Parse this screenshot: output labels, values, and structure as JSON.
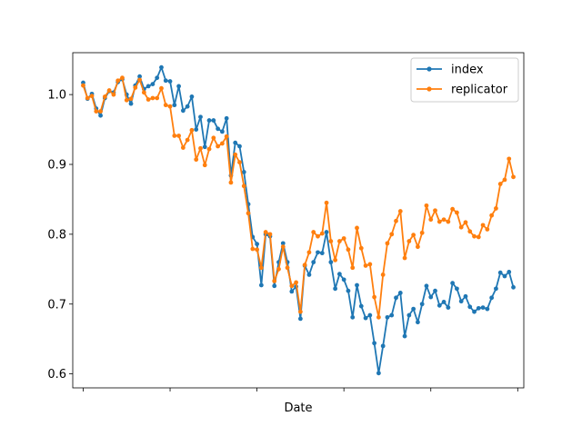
{
  "chart_data": {
    "type": "line",
    "title": "",
    "xlabel": "Date",
    "ylabel": "",
    "xlim": [
      -2.4,
      101.4
    ],
    "ylim": [
      0.58,
      1.06
    ],
    "yticks": [
      0.6,
      0.7,
      0.8,
      0.9,
      1.0
    ],
    "ytick_labels": [
      "0.6",
      "0.7",
      "0.8",
      "0.9",
      "1.0"
    ],
    "xticks": [
      0,
      20,
      40,
      60,
      80,
      100
    ],
    "xtick_labels": [
      "",
      "",
      "",
      "",
      "",
      ""
    ],
    "grid": false,
    "legend_loc": "upper right",
    "series": [
      {
        "name": "index",
        "color": "#1f77b4",
        "marker": "circle",
        "values": [
          1.017,
          0.994,
          1.001,
          0.98,
          0.97,
          0.995,
          1.005,
          1.003,
          1.018,
          1.022,
          1.0,
          0.987,
          1.013,
          1.026,
          1.008,
          1.012,
          1.015,
          1.024,
          1.039,
          1.02,
          1.019,
          0.985,
          1.012,
          0.977,
          0.983,
          0.997,
          0.95,
          0.968,
          0.925,
          0.963,
          0.963,
          0.951,
          0.947,
          0.966,
          0.884,
          0.931,
          0.926,
          0.889,
          0.843,
          0.796,
          0.786,
          0.727,
          0.8,
          0.797,
          0.726,
          0.76,
          0.787,
          0.76,
          0.718,
          0.725,
          0.679,
          0.755,
          0.742,
          0.76,
          0.774,
          0.773,
          0.803,
          0.76,
          0.722,
          0.743,
          0.735,
          0.719,
          0.681,
          0.727,
          0.697,
          0.68,
          0.684,
          0.644,
          0.601,
          0.64,
          0.681,
          0.684,
          0.709,
          0.716,
          0.654,
          0.684,
          0.693,
          0.674,
          0.7,
          0.726,
          0.71,
          0.719,
          0.698,
          0.703,
          0.695,
          0.73,
          0.722,
          0.704,
          0.711,
          0.696,
          0.689,
          0.694,
          0.695,
          0.693,
          0.709,
          0.722,
          0.745,
          0.74,
          0.746,
          0.724
        ]
      },
      {
        "name": "replicator",
        "color": "#ff7f0e",
        "marker": "circle",
        "values": [
          1.013,
          0.995,
          0.998,
          0.976,
          0.976,
          0.997,
          1.006,
          1.0,
          1.02,
          1.024,
          0.992,
          0.994,
          1.01,
          1.021,
          1.003,
          0.993,
          0.995,
          0.995,
          1.009,
          0.985,
          0.983,
          0.941,
          0.941,
          0.924,
          0.935,
          0.949,
          0.907,
          0.923,
          0.899,
          0.922,
          0.938,
          0.926,
          0.93,
          0.94,
          0.874,
          0.914,
          0.903,
          0.869,
          0.83,
          0.779,
          0.778,
          0.752,
          0.803,
          0.8,
          0.733,
          0.75,
          0.782,
          0.752,
          0.726,
          0.731,
          0.689,
          0.756,
          0.774,
          0.803,
          0.797,
          0.801,
          0.845,
          0.79,
          0.763,
          0.79,
          0.794,
          0.778,
          0.752,
          0.809,
          0.78,
          0.755,
          0.757,
          0.71,
          0.681,
          0.742,
          0.787,
          0.8,
          0.819,
          0.833,
          0.766,
          0.79,
          0.799,
          0.782,
          0.802,
          0.841,
          0.821,
          0.834,
          0.818,
          0.821,
          0.818,
          0.836,
          0.831,
          0.81,
          0.817,
          0.804,
          0.797,
          0.796,
          0.813,
          0.807,
          0.827,
          0.837,
          0.872,
          0.878,
          0.908,
          0.882
        ]
      }
    ]
  }
}
